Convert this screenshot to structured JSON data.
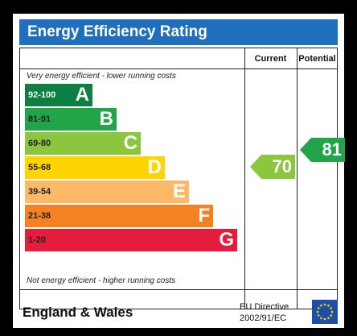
{
  "chart_data": {
    "type": "bar",
    "title": "Energy Efficiency Rating",
    "columns": [
      "Current",
      "Potential"
    ],
    "top_caption": "Very energy efficient - lower running costs",
    "bottom_caption": "Not energy efficient - higher running costs",
    "bands": [
      {
        "letter": "A",
        "range": "92-100",
        "color": "#0c8040",
        "text_color": "#ffffff"
      },
      {
        "letter": "B",
        "range": "81-91",
        "color": "#22a449",
        "text_color": "#222222"
      },
      {
        "letter": "C",
        "range": "69-80",
        "color": "#8cc63f",
        "text_color": "#222222"
      },
      {
        "letter": "D",
        "range": "55-68",
        "color": "#ffd400",
        "text_color": "#222222"
      },
      {
        "letter": "E",
        "range": "39-54",
        "color": "#fcb968",
        "text_color": "#222222"
      },
      {
        "letter": "F",
        "range": "21-38",
        "color": "#f48122",
        "text_color": "#222222"
      },
      {
        "letter": "G",
        "range": "1-20",
        "color": "#e31d3b",
        "text_color": "#222222"
      }
    ],
    "current": {
      "value": 70,
      "band": "C",
      "color": "#8cc63f"
    },
    "potential": {
      "value": 81,
      "band": "B",
      "color": "#22a449"
    }
  },
  "footer": {
    "region": "England & Wales",
    "directive_line1": "EU Directive",
    "directive_line2": "2002/91/EC"
  }
}
